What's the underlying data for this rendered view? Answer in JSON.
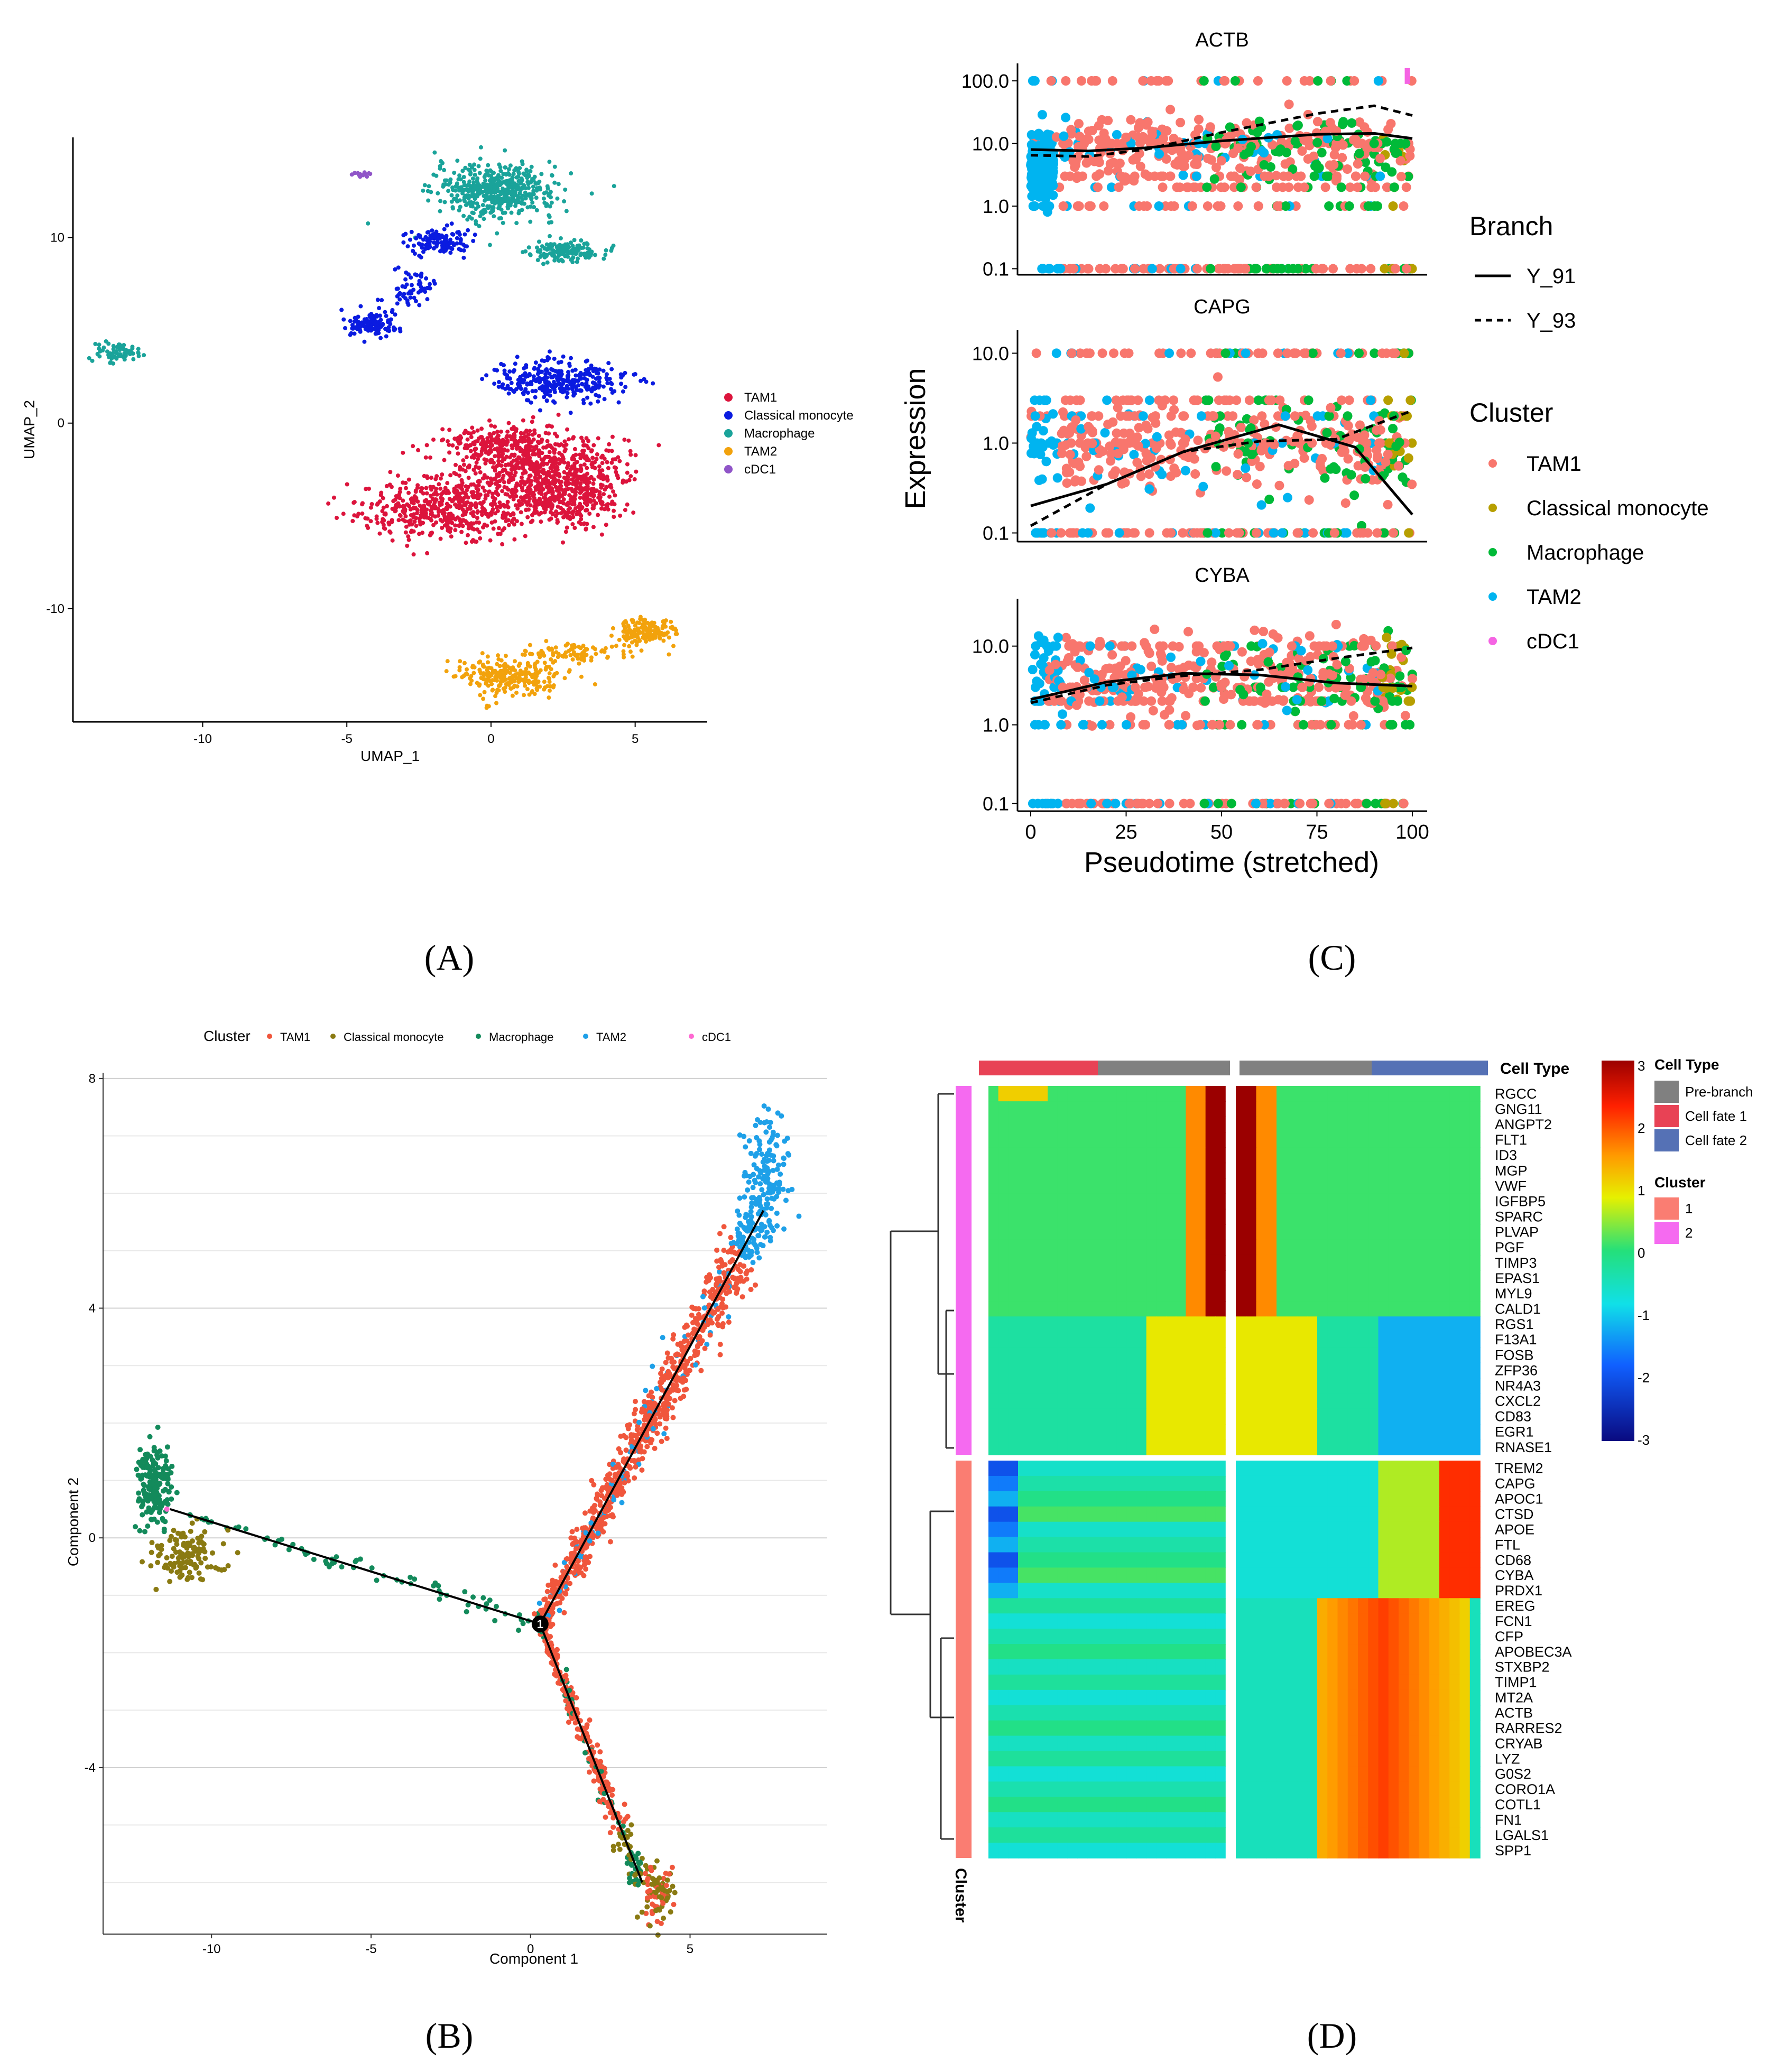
{
  "panel_labels": {
    "A": "(A)",
    "B": "(B)",
    "C": "(C)",
    "D": "(D)"
  },
  "chart_data": [
    {
      "panel": "A",
      "type": "scatter",
      "xlabel": "UMAP_1",
      "ylabel": "UMAP_2",
      "xticks": [
        -10,
        -5,
        0,
        5
      ],
      "yticks": [
        -10,
        0,
        10
      ],
      "xlim": [
        -14.5,
        7.5
      ],
      "ylim": [
        -16.1,
        15.4
      ],
      "legend": {
        "placement": "right",
        "items": [
          {
            "name": "TAM1",
            "color": "#dc143c"
          },
          {
            "name": "Classical monocyte",
            "color": "#0a1be0"
          },
          {
            "name": "Macrophage",
            "color": "#1aa39a"
          },
          {
            "name": "TAM2",
            "color": "#f2a20c"
          },
          {
            "name": "cDC1",
            "color": "#9055c8"
          }
        ]
      },
      "clusters": [
        {
          "series": "Macrophage",
          "cx": 0.2,
          "cy": 12.5,
          "rx": 1.9,
          "ry": 1.3,
          "n": 520
        },
        {
          "series": "Macrophage",
          "cx": 2.6,
          "cy": 9.3,
          "rx": 1.1,
          "ry": 0.5,
          "n": 150
        },
        {
          "series": "Macrophage",
          "cx": -13.0,
          "cy": 3.8,
          "rx": 0.7,
          "ry": 0.5,
          "n": 70
        },
        {
          "series": "cDC1",
          "cx": -4.5,
          "cy": 13.4,
          "rx": 0.3,
          "ry": 0.2,
          "n": 14
        },
        {
          "series": "Classical monocyte",
          "cx": -1.8,
          "cy": 9.8,
          "rx": 1.0,
          "ry": 0.6,
          "n": 120
        },
        {
          "series": "Classical monocyte",
          "cx": -4.2,
          "cy": 5.3,
          "rx": 0.9,
          "ry": 0.6,
          "n": 110
        },
        {
          "series": "Classical monocyte",
          "cx": -2.8,
          "cy": 7.2,
          "rx": 0.7,
          "ry": 0.9,
          "n": 60
        },
        {
          "series": "Classical monocyte",
          "cx": 2.4,
          "cy": 2.3,
          "rx": 2.0,
          "ry": 1.0,
          "n": 320
        },
        {
          "series": "TAM1",
          "cx": -1.4,
          "cy": -4.6,
          "rx": 2.8,
          "ry": 1.5,
          "n": 520
        },
        {
          "series": "TAM1",
          "cx": 1.5,
          "cy": -2.4,
          "rx": 2.6,
          "ry": 1.8,
          "n": 600
        },
        {
          "series": "TAM1",
          "cx": 2.6,
          "cy": -4.1,
          "rx": 1.6,
          "ry": 1.4,
          "n": 300
        },
        {
          "series": "TAM1",
          "cx": 0.2,
          "cy": -1.0,
          "rx": 1.4,
          "ry": 0.7,
          "n": 150
        },
        {
          "series": "TAM2",
          "cx": 0.6,
          "cy": -13.6,
          "rx": 1.6,
          "ry": 0.9,
          "n": 260
        },
        {
          "series": "TAM2",
          "cx": 3.0,
          "cy": -12.4,
          "rx": 1.8,
          "ry": 0.5,
          "n": 90
        },
        {
          "series": "TAM2",
          "cx": 5.3,
          "cy": -11.2,
          "rx": 0.9,
          "ry": 0.6,
          "n": 170
        }
      ]
    },
    {
      "panel": "B",
      "type": "scatter",
      "legend_title": "Cluster",
      "xlabel": "Component 1",
      "ylabel": "Component 2",
      "xticks": [
        -10,
        -5,
        0,
        5
      ],
      "yticks": [
        -4,
        0,
        4,
        8
      ],
      "xlim": [
        -13.4,
        9.3
      ],
      "ylim": [
        -6.9,
        8.1
      ],
      "legend": {
        "placement": "top",
        "items": [
          {
            "name": "TAM1",
            "color": "#f0563c"
          },
          {
            "name": "Classical monocyte",
            "color": "#8a7a12"
          },
          {
            "name": "Macrophage",
            "color": "#138a5b"
          },
          {
            "name": "TAM2",
            "color": "#1ea0e8"
          },
          {
            "name": "cDC1",
            "color": "#ff69d2"
          }
        ]
      },
      "trajectory": [
        {
          "from": [
            -11.3,
            0.5
          ],
          "to": [
            0.3,
            -1.5
          ]
        },
        {
          "from": [
            0.3,
            -1.5
          ],
          "to": [
            7.3,
            5.7
          ]
        },
        {
          "from": [
            0.3,
            -1.5
          ],
          "to": [
            3.5,
            -6.0
          ]
        }
      ],
      "branch_point": {
        "x": 0.3,
        "y": -1.5,
        "label": "1"
      }
    },
    {
      "panel": "C",
      "type": "scatter",
      "xlabel": "Pseudotime (stretched)",
      "ylabel": "Expression",
      "yscale": "log",
      "xticks": [
        0,
        25,
        50,
        75,
        100
      ],
      "ytick_labels": [
        "0.1",
        "1.0",
        "10.0",
        "100.0"
      ],
      "legends": [
        {
          "title": "Branch",
          "items": [
            {
              "name": "Y_91",
              "style": "solid"
            },
            {
              "name": "Y_93",
              "style": "dashed"
            }
          ]
        },
        {
          "title": "Cluster",
          "items": [
            {
              "name": "TAM1",
              "color": "#f8766d"
            },
            {
              "name": "Classical monocyte",
              "color": "#b79f00"
            },
            {
              "name": "Macrophage",
              "color": "#00ba38"
            },
            {
              "name": "TAM2",
              "color": "#00b4f0"
            },
            {
              "name": "cDC1",
              "color": "#f564e3"
            }
          ]
        }
      ],
      "facets": [
        {
          "gene": "ACTB",
          "yticks": [
            0.1,
            1,
            10,
            100
          ],
          "ylim": [
            0.08,
            190
          ],
          "solid": {
            "x": [
              0,
              15,
              30,
              50,
              75,
              90,
              100
            ],
            "y": [
              8,
              7.6,
              8.5,
              11,
              14,
              14.5,
              12
            ]
          },
          "dashed": {
            "x": [
              0,
              15,
              30,
              50,
              75,
              90,
              100
            ],
            "y": [
              6.5,
              6.2,
              8,
              15,
              30,
              40,
              28
            ]
          }
        },
        {
          "gene": "CAPG",
          "yticks": [
            0.1,
            1,
            10
          ],
          "ylim": [
            0.08,
            18
          ],
          "solid": {
            "x": [
              0,
              20,
              40,
              65,
              85,
              100
            ],
            "y": [
              0.2,
              0.35,
              0.8,
              1.6,
              0.9,
              0.16
            ]
          },
          "dashed": {
            "x": [
              0,
              20,
              40,
              60,
              80,
              100
            ],
            "y": [
              0.12,
              0.35,
              0.8,
              1.05,
              1.1,
              2.3
            ]
          }
        },
        {
          "gene": "CYBA",
          "yticks": [
            0.1,
            1,
            10
          ],
          "ylim": [
            0.08,
            40
          ],
          "solid": {
            "x": [
              0,
              20,
              40,
              60,
              80,
              100
            ],
            "y": [
              2.1,
              3.5,
              4.5,
              4.3,
              3.4,
              3.1
            ]
          },
          "dashed": {
            "x": [
              0,
              20,
              40,
              60,
              80,
              100
            ],
            "y": [
              1.9,
              3.2,
              4.2,
              5,
              7,
              9.5
            ]
          }
        }
      ]
    },
    {
      "panel": "D",
      "type": "heatmap",
      "top_annotation_title": "Cell Type",
      "side_annotation_title": "Cluster",
      "colorbar_ticks": [
        3,
        2,
        1,
        0,
        -1,
        -2,
        -3
      ],
      "cell_type_legend": {
        "title": "Cell Type",
        "items": [
          {
            "name": "Pre-branch",
            "color": "#808080"
          },
          {
            "name": "Cell fate 1",
            "color": "#e84255"
          },
          {
            "name": "Cell fate 2",
            "color": "#5571b5"
          }
        ]
      },
      "cluster_legend": {
        "title": "Cluster",
        "items": [
          {
            "name": "1",
            "color": "#fa7d72"
          },
          {
            "name": "2",
            "color": "#f56af0"
          }
        ]
      },
      "cluster1_genes": [
        "RGCC",
        "GNG11",
        "ANGPT2",
        "FLT1",
        "ID3",
        "MGP",
        "VWF",
        "IGFBP5",
        "SPARC",
        "PLVAP",
        "PGF",
        "TIMP3",
        "EPAS1",
        "MYL9",
        "CALD1",
        "RGS1",
        "F13A1",
        "FOSB",
        "ZFP36",
        "NR4A3",
        "CXCL2",
        "CD83",
        "EGR1",
        "RNASE1"
      ],
      "cluster2_genes": [
        "TREM2",
        "CAPG",
        "APOC1",
        "CTSD",
        "APOE",
        "FTL",
        "CD68",
        "CYBA",
        "PRDX1",
        "EREG",
        "FCN1",
        "CFP",
        "APOBEC3A",
        "STXBP2",
        "TIMP1",
        "MT2A",
        "ACTB",
        "RARRES2",
        "CRYAB",
        "LYZ",
        "G0S2",
        "CORO1A",
        "COTL1",
        "FN1",
        "LGALS1",
        "SPP1"
      ]
    }
  ]
}
